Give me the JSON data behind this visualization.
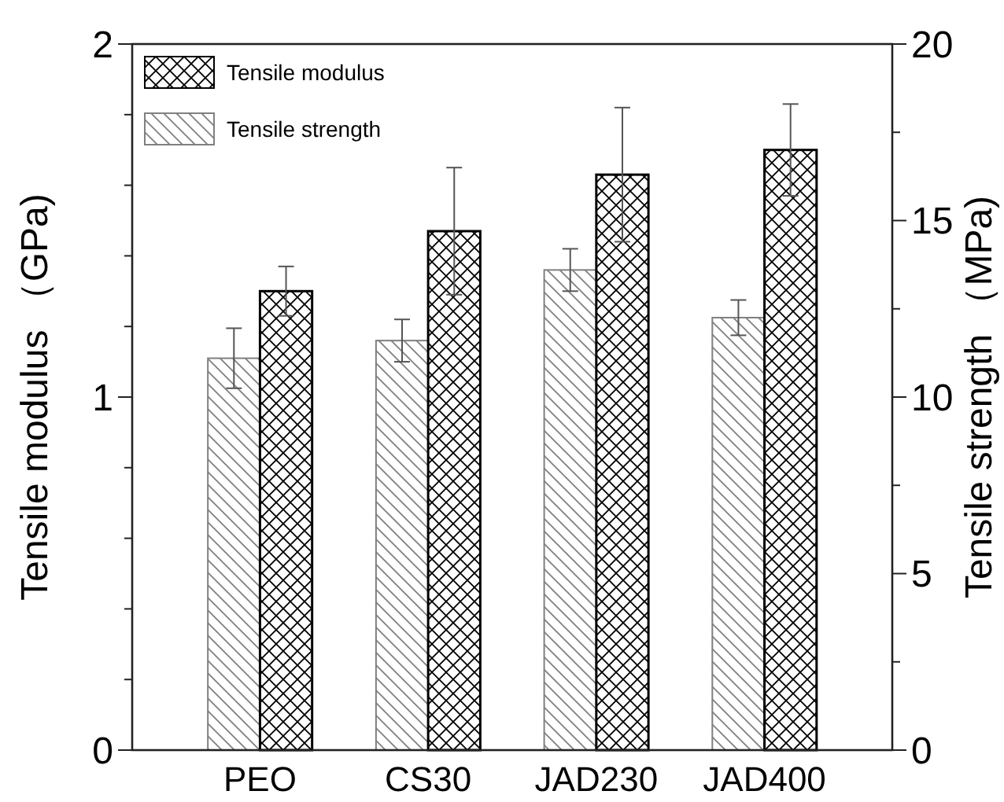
{
  "chart_data": {
    "type": "bar",
    "categories": [
      "PEO",
      "CS30",
      "JAD230",
      "JAD400"
    ],
    "ylabel": "Tensile modulus （GPa)",
    "y2label": "Tensile strength （MPa)",
    "ylim": [
      0,
      2
    ],
    "yticks": [
      0,
      {
        "value": 0.2,
        "label": null
      },
      {
        "value": 0.4,
        "label": null
      },
      {
        "value": 0.6,
        "label": null
      },
      {
        "value": 0.8,
        "label": null
      },
      1,
      {
        "value": 1.2,
        "label": null
      },
      {
        "value": 1.4,
        "label": null
      },
      {
        "value": 1.6,
        "label": null
      },
      {
        "value": 1.8,
        "label": null
      },
      2
    ],
    "y2lim": [
      0,
      20
    ],
    "y2ticks": [
      0,
      {
        "value": 2.5,
        "label": null
      },
      5,
      {
        "value": 7.5,
        "label": null
      },
      10,
      {
        "value": 12.5,
        "label": null
      },
      15,
      {
        "value": 17.5,
        "label": null
      },
      20
    ],
    "legend": "top left",
    "series": [
      {
        "name": "Tensile strength",
        "color": "#808080",
        "axis": "y2",
        "values": [
          11.1,
          11.6,
          13.6,
          12.25
        ],
        "errors": [
          0.85,
          0.6,
          0.6,
          0.5
        ]
      },
      {
        "name": "Tensile modulus",
        "color": "#000000",
        "values": [
          1.3,
          1.47,
          1.63,
          1.7
        ],
        "errors": [
          0.07,
          0.18,
          0.19,
          0.13
        ]
      }
    ]
  }
}
